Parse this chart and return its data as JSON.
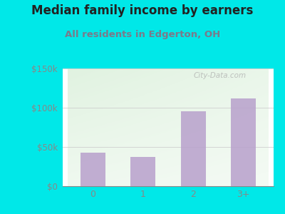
{
  "title": "Median family income by earners",
  "subtitle": "All residents in Edgerton, OH",
  "categories": [
    "0",
    "1",
    "2",
    "3+"
  ],
  "values": [
    43000,
    37000,
    95000,
    112000
  ],
  "bar_color": "#b8a0cc",
  "outer_bg": "#00e8e8",
  "title_color": "#222222",
  "subtitle_color": "#7a7a8a",
  "ytick_labels": [
    "$0",
    "$50k",
    "$100k",
    "$150k"
  ],
  "ytick_values": [
    0,
    50000,
    100000,
    150000
  ],
  "ylim": [
    0,
    150000
  ],
  "watermark": "City-Data.com",
  "title_fontsize": 12,
  "subtitle_fontsize": 9.5,
  "tick_color": "#888888",
  "grid_color": "#cccccc",
  "plot_bg_colors": [
    "#dff0df",
    "#ffffff"
  ]
}
